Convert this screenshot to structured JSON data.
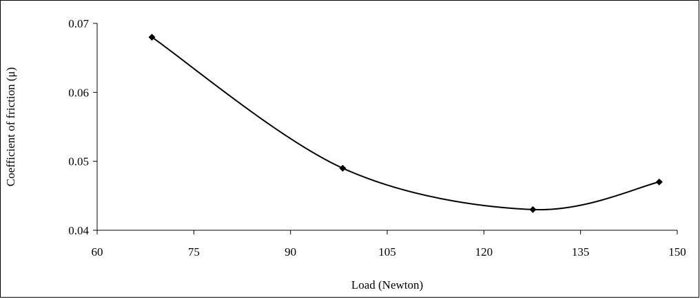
{
  "chart_data": {
    "type": "scatter",
    "title": "",
    "xlabel": "Load (Newton)",
    "ylabel": "Coefficient of friction (μ)",
    "xlim": [
      60,
      150
    ],
    "ylim": [
      0.04,
      0.07
    ],
    "x_ticks": [
      60,
      75,
      90,
      105,
      120,
      135,
      150
    ],
    "y_ticks": [
      0.04,
      0.05,
      0.06,
      0.07
    ],
    "x_tick_labels": [
      "60",
      "75",
      "90",
      "105",
      "120",
      "135",
      "150"
    ],
    "y_tick_labels": [
      "0.04",
      "0.05",
      "0.06",
      "0.07"
    ],
    "grid": false,
    "legend": false,
    "line_style": "smooth",
    "marker": "diamond",
    "series": [
      {
        "x": [
          68.5,
          98.1,
          127.6,
          147.2
        ],
        "y": [
          0.068,
          0.049,
          0.043,
          0.047
        ],
        "color": "#000000"
      }
    ]
  }
}
